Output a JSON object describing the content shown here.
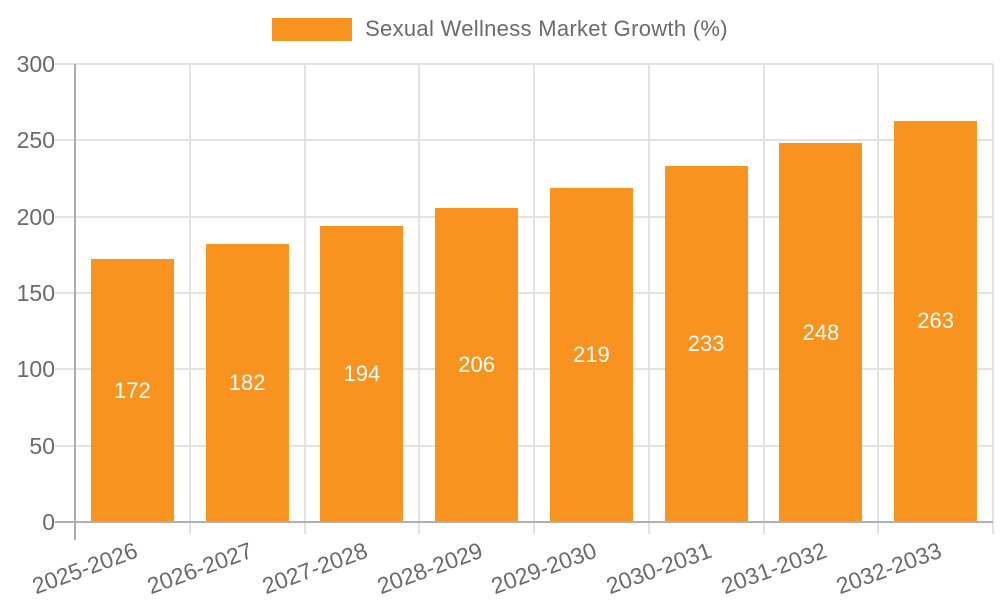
{
  "chart_data": {
    "type": "bar",
    "title": "Sexual Wellness Market Growth (%)",
    "categories": [
      "2025-2026",
      "2026-2027",
      "2027-2028",
      "2028-2029",
      "2029-2030",
      "2030-2031",
      "2031-2032",
      "2032-2033"
    ],
    "values": [
      172,
      182,
      194,
      206,
      219,
      233,
      248,
      263
    ],
    "xlabel": "",
    "ylabel": "",
    "ylim": [
      0,
      300
    ],
    "yticks": [
      0,
      50,
      100,
      150,
      200,
      250,
      300
    ],
    "grid": true,
    "legend_position": "top",
    "colors": {
      "bar": "#F7931E",
      "value_label": "#ffffff",
      "axis_text": "#6a6a6a",
      "gridline": "#e2e2e2",
      "axis_line": "#adadad",
      "baseline": "#b0b0b0",
      "background": "#ffffff"
    }
  }
}
